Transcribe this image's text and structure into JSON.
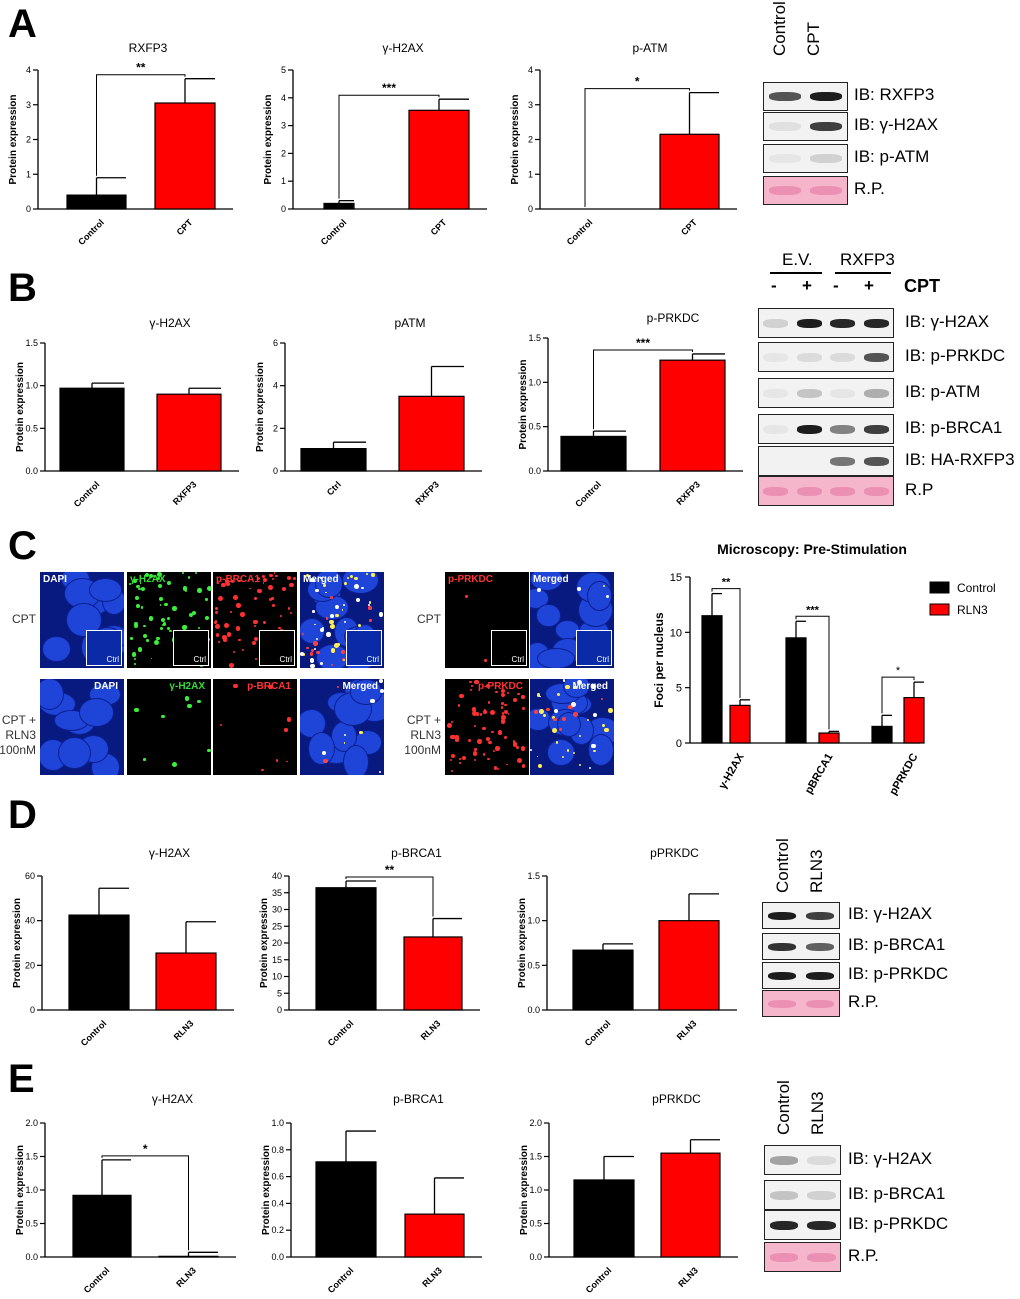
{
  "panel_letters": [
    "A",
    "B",
    "C",
    "D",
    "E"
  ],
  "colors": {
    "control": "#000000",
    "treated": "#ff0000",
    "dapi": "#1538c8",
    "green": "#22d022",
    "red": "#e01818",
    "ponceau": "#f5b6cc"
  },
  "chart_data": [
    {
      "id": "A1",
      "type": "bar",
      "title": "RXFP3",
      "ylabel": "Protein expression",
      "categories": [
        "Control",
        "CPT"
      ],
      "values": [
        0.4,
        3.05
      ],
      "errors": [
        0.5,
        0.7
      ],
      "ylim": [
        0,
        4
      ],
      "yticks": [
        0,
        1,
        2,
        3,
        4
      ],
      "sig": "**",
      "sig_pair": [
        0,
        1
      ]
    },
    {
      "id": "A2",
      "type": "bar",
      "title": "γ-H2AX",
      "ylabel": "Protein expression",
      "categories": [
        "Control",
        "CPT"
      ],
      "values": [
        0.2,
        3.55
      ],
      "errors": [
        0.1,
        0.4
      ],
      "ylim": [
        0,
        5
      ],
      "yticks": [
        0,
        1,
        2,
        3,
        4,
        5
      ],
      "sig": "***",
      "sig_pair": [
        0,
        1
      ]
    },
    {
      "id": "A3",
      "type": "bar",
      "title": "p-ATM",
      "ylabel": "Protein expression",
      "categories": [
        "Control",
        "CPT"
      ],
      "values": [
        0,
        2.15
      ],
      "errors": [
        0,
        1.2
      ],
      "ylim": [
        0,
        4
      ],
      "yticks": [
        0,
        1,
        2,
        3,
        4
      ],
      "sig": "*",
      "sig_pair": [
        0,
        1
      ]
    },
    {
      "id": "B1",
      "type": "bar",
      "title": "γ-H2AX",
      "ylabel": "Protein expression",
      "categories": [
        "Control",
        "RXFP3"
      ],
      "values": [
        0.97,
        0.9
      ],
      "errors": [
        0.06,
        0.07
      ],
      "ylim": [
        0,
        1.5
      ],
      "yticks": [
        "0.0",
        "0.5",
        "1.0",
        "1.5"
      ],
      "sig": "",
      "sig_pair": null
    },
    {
      "id": "B2",
      "type": "bar",
      "title": "pATM",
      "ylabel": "Protein expression",
      "categories": [
        "Ctrl",
        "RXFP3"
      ],
      "values": [
        1.05,
        3.5
      ],
      "errors": [
        0.3,
        1.4
      ],
      "ylim": [
        0,
        6
      ],
      "yticks": [
        0,
        2,
        4,
        6
      ],
      "sig": "",
      "sig_pair": null
    },
    {
      "id": "B3",
      "type": "bar",
      "title": "p-PRKDC",
      "ylabel": "Protein expression",
      "categories": [
        "Control",
        "RXFP3"
      ],
      "values": [
        0.39,
        1.25
      ],
      "errors": [
        0.06,
        0.07
      ],
      "ylim": [
        0,
        1.5
      ],
      "yticks": [
        "0.0",
        "0.5",
        "1.0",
        "1.5"
      ],
      "sig": "***",
      "sig_pair": [
        0,
        1
      ]
    },
    {
      "id": "C1",
      "type": "bar",
      "title": "Microscopy: Pre-Stimulation",
      "ylabel": "Foci per nucleus",
      "grouped": true,
      "categories": [
        "γ-H2AX",
        "pBRCA1",
        "pPRKDC"
      ],
      "series": [
        {
          "name": "Control",
          "values": [
            11.5,
            9.5,
            1.5
          ],
          "errors": [
            2.0,
            1.5,
            1.0
          ]
        },
        {
          "name": "RLN3",
          "values": [
            3.4,
            0.9,
            4.1
          ],
          "errors": [
            0.5,
            0.15,
            1.4
          ]
        }
      ],
      "ylim": [
        0,
        15
      ],
      "yticks": [
        0,
        5,
        10,
        15
      ],
      "sigs": [
        "**",
        "***",
        "*"
      ]
    },
    {
      "id": "D1",
      "type": "bar",
      "title": "γ-H2AX",
      "ylabel": "Protein expression",
      "categories": [
        "Control",
        "RLN3"
      ],
      "values": [
        42.5,
        25.5
      ],
      "errors": [
        12,
        14
      ],
      "ylim": [
        0,
        60
      ],
      "yticks": [
        0,
        20,
        40,
        60
      ],
      "sig": "",
      "sig_pair": null
    },
    {
      "id": "D2",
      "type": "bar",
      "title": "p-BRCA1",
      "ylabel": "Protein expression",
      "categories": [
        "Control",
        "RLN3"
      ],
      "values": [
        36.5,
        21.8
      ],
      "errors": [
        2,
        5.5
      ],
      "ylim": [
        0,
        40
      ],
      "yticks": [
        0,
        5,
        10,
        15,
        20,
        25,
        30,
        35,
        40
      ],
      "sig": "**",
      "sig_pair": [
        0,
        1
      ]
    },
    {
      "id": "D3",
      "type": "bar",
      "title": "pPRKDC",
      "ylabel": "Protein expression",
      "categories": [
        "Control",
        "RLN3"
      ],
      "values": [
        0.67,
        1.0
      ],
      "errors": [
        0.07,
        0.3
      ],
      "ylim": [
        0,
        1.5
      ],
      "yticks": [
        "0.0",
        "0.5",
        "1.0",
        "1.5"
      ],
      "sig": "",
      "sig_pair": null
    },
    {
      "id": "E1",
      "type": "bar",
      "title": "γ-H2AX",
      "ylabel": "Protein expression",
      "categories": [
        "Control",
        "RLN3"
      ],
      "values": [
        0.92,
        0.01
      ],
      "errors": [
        0.53,
        0.06
      ],
      "ylim": [
        0,
        2
      ],
      "yticks": [
        "0.0",
        "0.5",
        "1.0",
        "1.5",
        "2.0"
      ],
      "sig": "*",
      "sig_pair": [
        0,
        1
      ]
    },
    {
      "id": "E2",
      "type": "bar",
      "title": "p-BRCA1",
      "ylabel": "Protein expression",
      "categories": [
        "Control",
        "RLN3"
      ],
      "values": [
        0.71,
        0.32
      ],
      "errors": [
        0.23,
        0.27
      ],
      "ylim": [
        0,
        1
      ],
      "yticks": [
        "0.0",
        "0.2",
        "0.4",
        "0.6",
        "0.8",
        "1.0"
      ],
      "sig": "",
      "sig_pair": null
    },
    {
      "id": "E3",
      "type": "bar",
      "title": "pPRKDC",
      "ylabel": "Protein expression",
      "categories": [
        "Control",
        "RLN3"
      ],
      "values": [
        1.15,
        1.55
      ],
      "errors": [
        0.35,
        0.2
      ],
      "ylim": [
        0,
        2
      ],
      "yticks": [
        "0.0",
        "0.5",
        "1.0",
        "1.5",
        "2.0"
      ],
      "sig": "",
      "sig_pair": null
    }
  ],
  "blots": {
    "A": {
      "header": [
        "Control",
        "CPT"
      ],
      "rows": [
        "IB: RXFP3",
        "IB: γ-H2AX",
        "IB: p-ATM",
        "R.P."
      ]
    },
    "B": {
      "groups": [
        "E.V.",
        "RXFP3"
      ],
      "treatment_label": "CPT",
      "treatment_marks": [
        "-",
        "+",
        "-",
        "+"
      ],
      "rows": [
        "IB: γ-H2AX",
        "IB: p-PRKDC",
        "IB: p-ATM",
        "IB: p-BRCA1",
        "IB: HA-RXFP3",
        "R.P"
      ]
    },
    "D": {
      "header": [
        "Control",
        "RLN3"
      ],
      "rows": [
        "IB: γ-H2AX",
        "IB: p-BRCA1",
        "IB: p-PRKDC",
        "R.P."
      ]
    },
    "E": {
      "header": [
        "Control",
        "RLN3"
      ],
      "rows": [
        "IB: γ-H2AX",
        "IB: p-BRCA1",
        "IB: p-PRKDC",
        "R.P."
      ]
    }
  },
  "microscopy": {
    "row1_label": "CPT",
    "row2_label": "CPT + RLN3 100nM",
    "channels_left": [
      "DAPI",
      "γ-H2AX",
      "p-BRCA1",
      "Merged"
    ],
    "channels_right": [
      "p-PRKDC",
      "Merged"
    ],
    "inset_label": "Ctrl"
  }
}
